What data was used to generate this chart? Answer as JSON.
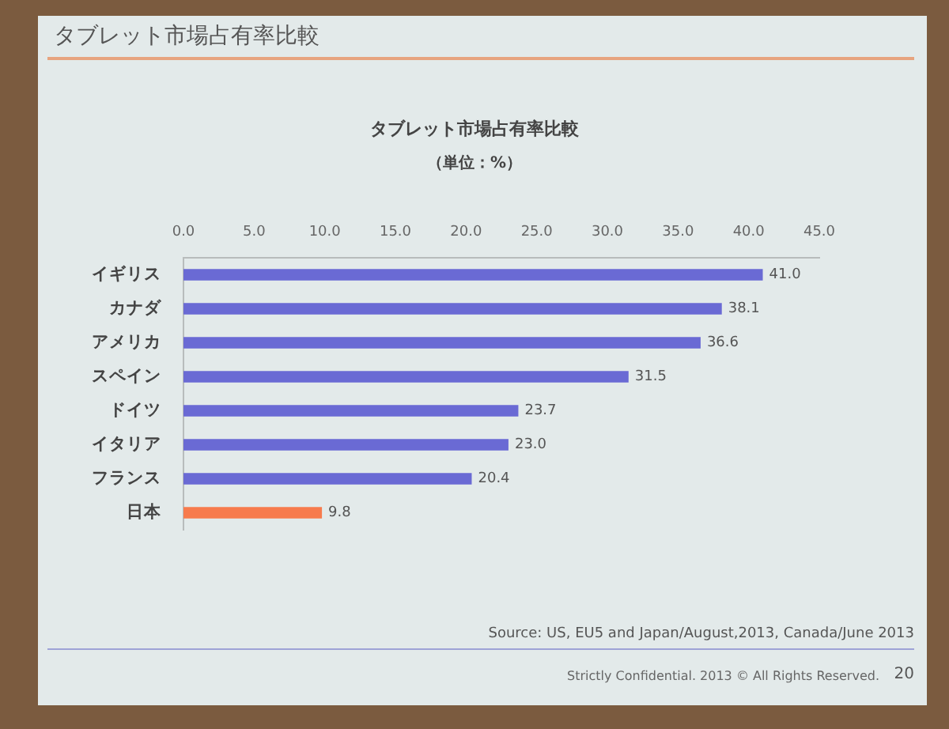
{
  "chart_data": {
    "type": "bar",
    "orientation": "horizontal",
    "title": "タブレット市場占有率比較",
    "subtitle": "（単位：%）",
    "categories": [
      "イギリス",
      "カナダ",
      "アメリカ",
      "スペイン",
      "ドイツ",
      "イタリア",
      "フランス",
      "日本"
    ],
    "values": [
      41.0,
      38.1,
      36.6,
      31.5,
      23.7,
      23.0,
      20.4,
      9.8
    ],
    "colors": [
      "#6a6ad4",
      "#6a6ad4",
      "#6a6ad4",
      "#6a6ad4",
      "#6a6ad4",
      "#6a6ad4",
      "#6a6ad4",
      "#f77b4d"
    ],
    "value_labels": [
      "41.0",
      "38.1",
      "36.6",
      "31.5",
      "23.7",
      "23.0",
      "20.4",
      "9.8"
    ],
    "xlim": [
      0,
      45
    ],
    "xticks": [
      {
        "value": 0,
        "label": "0.0"
      },
      {
        "value": 5,
        "label": "5.0"
      },
      {
        "value": 10,
        "label": "10.0"
      },
      {
        "value": 15,
        "label": "15.0"
      },
      {
        "value": 20,
        "label": "20.0"
      },
      {
        "value": 25,
        "label": "25.0"
      },
      {
        "value": 30,
        "label": "30.0"
      },
      {
        "value": 35,
        "label": "35.0"
      },
      {
        "value": 40,
        "label": "40.0"
      },
      {
        "value": 45,
        "label": "45.0"
      }
    ],
    "annotations": [
      "タブレット市場占有率比較",
      "Source: US, EU5 and Japan/August,2013, Canada/June 2013",
      "Strictly Confidential. 2013 © All Rights Reserved.",
      "20"
    ]
  }
}
